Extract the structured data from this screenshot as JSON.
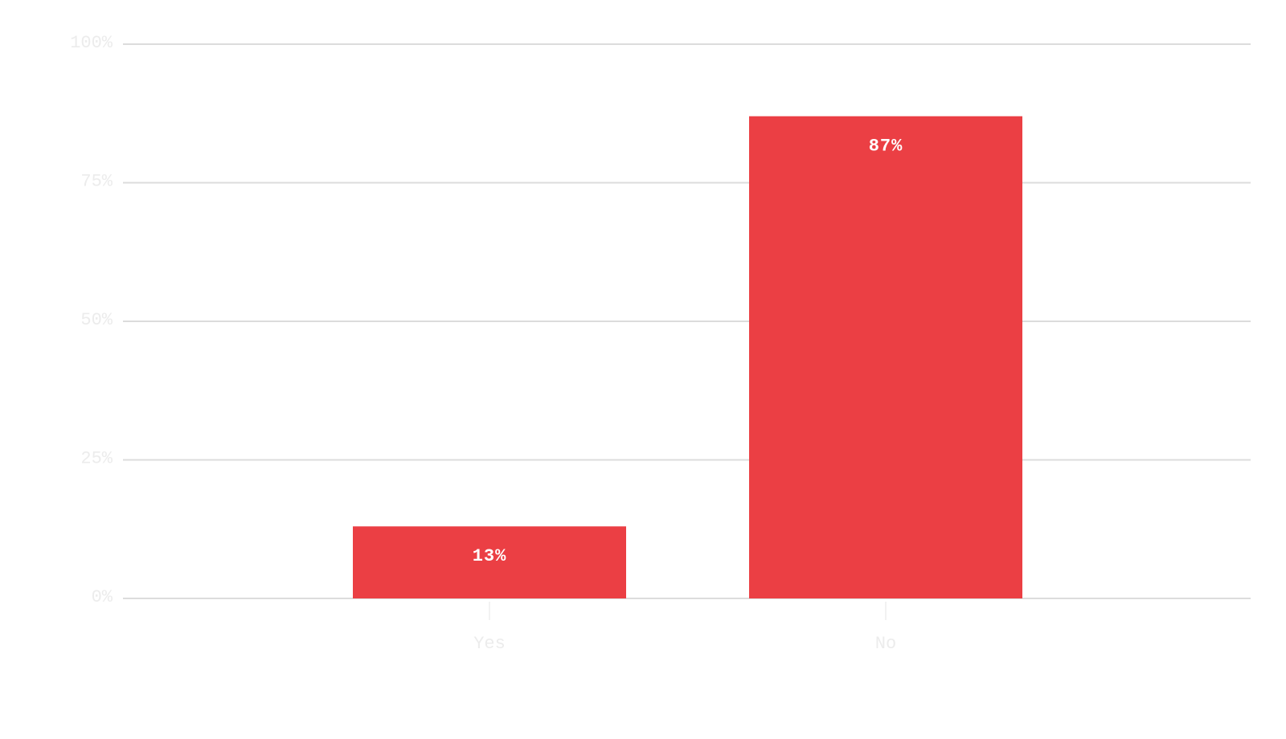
{
  "chart_data": {
    "type": "bar",
    "categories": [
      "Yes",
      "No"
    ],
    "values": [
      13,
      87
    ],
    "value_labels": [
      "13%",
      "87%"
    ],
    "color": "#eb3f44",
    "ylim": [
      0,
      100
    ],
    "yticks": [
      {
        "value": 0,
        "label": "0%"
      },
      {
        "value": 25,
        "label": "25%"
      },
      {
        "value": 50,
        "label": "50%"
      },
      {
        "value": 75,
        "label": "75%"
      },
      {
        "value": 100,
        "label": "100%"
      }
    ],
    "grid": true
  }
}
